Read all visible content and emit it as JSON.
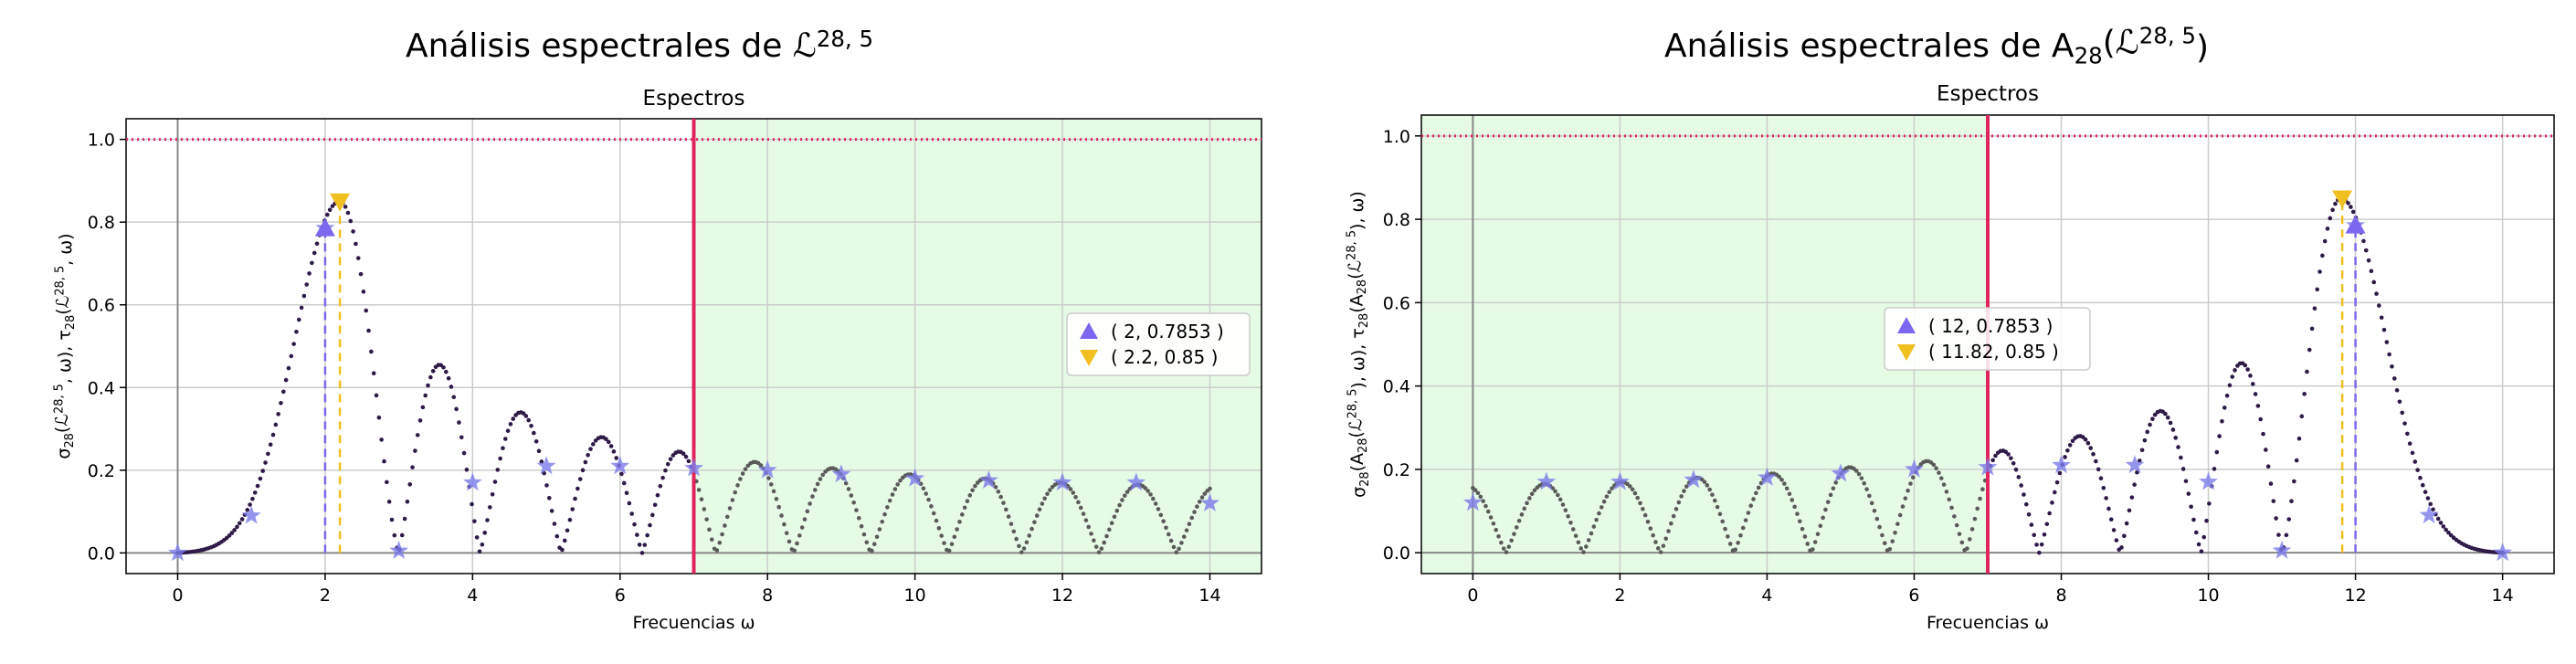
{
  "chart_data": [
    {
      "type": "line",
      "suptitle": "Análisis espectrales de ℒ^{28, 5}",
      "title": "Espectros",
      "xlabel": "Frecuencias ω",
      "ylabel": "σ28(ℒ^{28, 5}, ω), τ28(ℒ^{28, 5}, ω)",
      "xlim": [
        -0.7,
        14.7
      ],
      "ylim": [
        -0.05,
        1.05
      ],
      "xticks": [
        "0",
        "2",
        "4",
        "6",
        "8",
        "10",
        "12",
        "14"
      ],
      "yticks": [
        "0.0",
        "0.2",
        "0.4",
        "0.6",
        "0.8",
        "1.0"
      ],
      "grid": true,
      "reference_line_y": 1.0,
      "divider_x": 7,
      "shaded_region": [
        7,
        14.7
      ],
      "stars": [
        {
          "x": 0,
          "y": 0.0
        },
        {
          "x": 1,
          "y": 0.09
        },
        {
          "x": 2,
          "y": 0.7853
        },
        {
          "x": 3,
          "y": 0.005
        },
        {
          "x": 4,
          "y": 0.17
        },
        {
          "x": 5,
          "y": 0.21
        },
        {
          "x": 6,
          "y": 0.21
        },
        {
          "x": 7,
          "y": 0.205
        },
        {
          "x": 8,
          "y": 0.2
        },
        {
          "x": 9,
          "y": 0.19
        },
        {
          "x": 10,
          "y": 0.18
        },
        {
          "x": 11,
          "y": 0.175
        },
        {
          "x": 12,
          "y": 0.17
        },
        {
          "x": 13,
          "y": 0.17
        },
        {
          "x": 14,
          "y": 0.12
        }
      ],
      "markers": [
        {
          "kind": "triangle-up",
          "x": 2,
          "y": 0.7853,
          "color": "#7b68ee",
          "label": "( 2, 0.7853 )"
        },
        {
          "kind": "triangle-down",
          "x": 2.2,
          "y": 0.85,
          "color": "#f0c020",
          "label": "( 2.2, 0.85 )"
        }
      ],
      "legend_location": "center-right"
    },
    {
      "type": "line",
      "suptitle": "Análisis espectrales de A28(ℒ^{28, 5})",
      "title": "Espectros",
      "xlabel": "Frecuencias ω",
      "ylabel": "σ28(A28(ℒ^{28, 5}), ω), τ28(A28(ℒ^{28, 5}), ω)",
      "xlim": [
        -0.7,
        14.7
      ],
      "ylim": [
        -0.05,
        1.05
      ],
      "xticks": [
        "0",
        "2",
        "4",
        "6",
        "8",
        "10",
        "12",
        "14"
      ],
      "yticks": [
        "0.0",
        "0.2",
        "0.4",
        "0.6",
        "0.8",
        "1.0"
      ],
      "grid": true,
      "reference_line_y": 1.0,
      "divider_x": 7,
      "shaded_region": [
        -0.7,
        7
      ],
      "stars": [
        {
          "x": 0,
          "y": 0.12
        },
        {
          "x": 1,
          "y": 0.17
        },
        {
          "x": 2,
          "y": 0.17
        },
        {
          "x": 3,
          "y": 0.175
        },
        {
          "x": 4,
          "y": 0.18
        },
        {
          "x": 5,
          "y": 0.19
        },
        {
          "x": 6,
          "y": 0.2
        },
        {
          "x": 7,
          "y": 0.205
        },
        {
          "x": 8,
          "y": 0.21
        },
        {
          "x": 9,
          "y": 0.21
        },
        {
          "x": 10,
          "y": 0.17
        },
        {
          "x": 11,
          "y": 0.005
        },
        {
          "x": 12,
          "y": 0.7853
        },
        {
          "x": 13,
          "y": 0.09
        },
        {
          "x": 14,
          "y": 0.0
        }
      ],
      "markers": [
        {
          "kind": "triangle-up",
          "x": 12,
          "y": 0.7853,
          "color": "#7b68ee",
          "label": "( 12, 0.7853 )"
        },
        {
          "kind": "triangle-down",
          "x": 11.82,
          "y": 0.85,
          "color": "#f0c020",
          "label": "( 11.82, 0.85 )"
        }
      ],
      "legend_location": "center"
    }
  ],
  "colors": {
    "curve": "#2e1a47",
    "curve_shaded": "#5a5a5a",
    "shade": "#e6fbe6",
    "divider": "#e0245e",
    "reference": "#e0245e",
    "grid": "#cccccc",
    "star": "#7b7be8",
    "triangle_up": "#7b68ee",
    "triangle_down": "#f0c020"
  }
}
